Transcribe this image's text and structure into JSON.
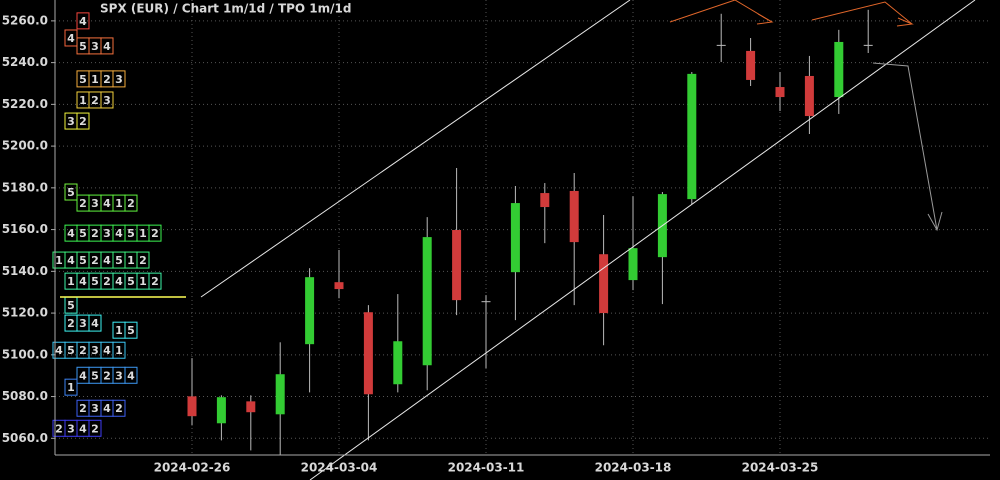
{
  "chart_data": {
    "type": "candlestick",
    "title": "SPX (EUR) /  Chart 1m/1d / TPO 1m/1d",
    "categories": [
      "2024-02-26",
      null,
      null,
      null,
      null,
      "2024-03-04",
      null,
      null,
      null,
      null,
      "2024-03-11",
      null,
      null,
      null,
      null,
      "2024-03-18",
      null,
      null,
      null,
      null,
      "2024-03-25",
      null,
      null,
      null
    ],
    "open": [
      5080.1,
      5067.2,
      5077.7,
      5071.5,
      5105.1,
      5134.8,
      5120.4,
      5085.9,
      5095.0,
      5159.8,
      5125.7,
      5139.6,
      5177.5,
      5178.5,
      5148.2,
      5135.8,
      5146.8,
      5174.6,
      5248.5,
      5245.6,
      5228.3,
      5233.6,
      5223.5,
      5248.5
    ],
    "high": [
      5098.4,
      5080.6,
      5080.6,
      5106.0,
      5141.5,
      5150.2,
      5123.8,
      5129.1,
      5166.0,
      5189.5,
      5128.6,
      5180.9,
      5182.3,
      5187.1,
      5167.0,
      5176.0,
      5178.0,
      5235.5,
      5263.4,
      5251.8,
      5235.5,
      5243.2,
      5255.7,
      5265.3
    ],
    "low": [
      5066.2,
      5059.0,
      5054.2,
      5051.8,
      5082.0,
      5127.1,
      5059.0,
      5082.0,
      5083.0,
      5119.0,
      5093.6,
      5116.6,
      5153.5,
      5123.8,
      5104.6,
      5131.0,
      5124.3,
      5172.2,
      5240.3,
      5228.8,
      5216.8,
      5205.8,
      5215.4,
      5244.6
    ],
    "close": [
      5070.6,
      5079.7,
      5072.5,
      5090.7,
      5137.2,
      5131.5,
      5081.1,
      5106.5,
      5156.4,
      5126.2,
      5125.7,
      5172.7,
      5170.8,
      5154.0,
      5120.0,
      5151.1,
      5177.0,
      5234.6,
      5248.5,
      5231.7,
      5223.5,
      5214.4,
      5249.9,
      5248.5
    ],
    "up_color": "#33cc33",
    "down_color": "#d13b3b",
    "ylim": [
      5052,
      5270
    ],
    "yticks": [
      {
        "value": 5060,
        "label": "5060.0"
      },
      {
        "value": 5080,
        "label": "5080.0"
      },
      {
        "value": 5100,
        "label": "5100.0"
      },
      {
        "value": 5120,
        "label": "5120.0"
      },
      {
        "value": 5140,
        "label": "5140.0"
      },
      {
        "value": 5160,
        "label": "5160.0"
      },
      {
        "value": 5180,
        "label": "5180.0"
      },
      {
        "value": 5200,
        "label": "5200.0"
      },
      {
        "value": 5220,
        "label": "5220.0"
      },
      {
        "value": 5240,
        "label": "5240.0"
      },
      {
        "value": 5260,
        "label": "5260.0"
      }
    ],
    "grid": true,
    "tpo": {
      "rows": [
        {
          "price": 5260.0,
          "letters": [
            "4"
          ]
        },
        {
          "price": 5251.8,
          "letters": [
            "4"
          ]
        },
        {
          "price": 5248.0,
          "letters": [
            "5",
            "3",
            "4"
          ]
        },
        {
          "price": 5232.2,
          "letters": [
            "5",
            "1",
            "2",
            "3"
          ]
        },
        {
          "price": 5222.1,
          "letters": [
            "1",
            "2",
            "3"
          ]
        },
        {
          "price": 5212.0,
          "letters": [
            "3",
            "2"
          ]
        },
        {
          "price": 5178.0,
          "letters": [
            "5"
          ]
        },
        {
          "price": 5172.7,
          "letters": [
            "2",
            "3",
            "4",
            "1",
            "2"
          ]
        },
        {
          "price": 5158.3,
          "letters": [
            "4",
            "5",
            "2",
            "3",
            "4",
            "5",
            "1",
            "2"
          ]
        },
        {
          "price": 5145.4,
          "letters": [
            "1",
            "4",
            "5",
            "2",
            "4",
            "5",
            "1",
            "2"
          ]
        },
        {
          "price": 5135.3,
          "letters": [
            "1",
            "4",
            "5",
            "2",
            "4",
            "5",
            "1",
            "2"
          ]
        },
        {
          "price": 5123.8,
          "letters": [
            "5"
          ]
        },
        {
          "price": 5115.2,
          "letters": [
            "2",
            "3",
            "4"
          ]
        },
        {
          "price": 5111.8,
          "letters": [
            "1",
            "5"
          ]
        },
        {
          "price": 5102.2,
          "letters": [
            "4",
            "5",
            "2",
            "3",
            "4",
            "1"
          ]
        },
        {
          "price": 5090.2,
          "letters": [
            "4",
            "5",
            "2",
            "3",
            "4"
          ]
        },
        {
          "price": 5084.5,
          "letters": [
            "1"
          ]
        },
        {
          "price": 5074.4,
          "letters": [
            "2",
            "3",
            "4",
            "2"
          ]
        },
        {
          "price": 5064.8,
          "letters": [
            "2",
            "3",
            "4",
            "2"
          ]
        }
      ]
    }
  }
}
